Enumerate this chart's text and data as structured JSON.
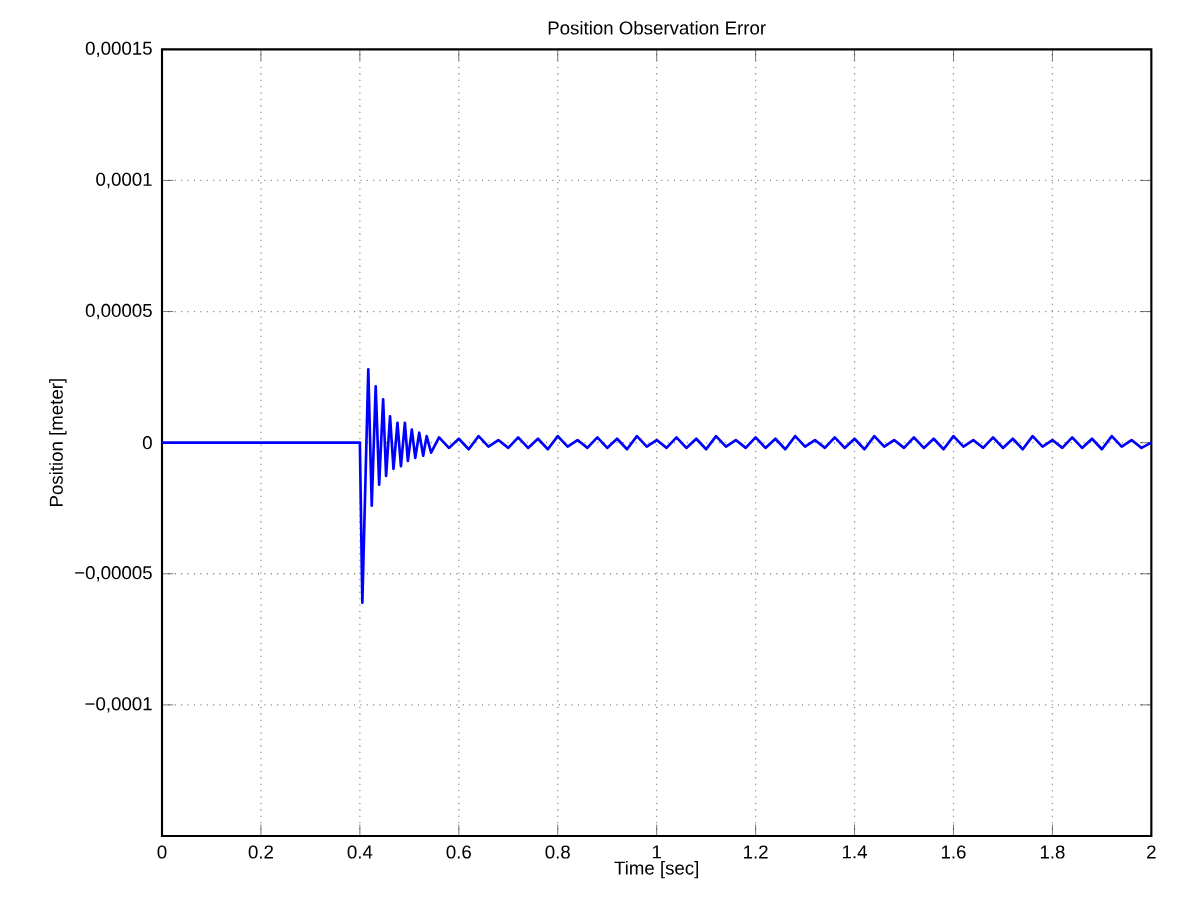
{
  "chart_data": {
    "type": "line",
    "title": "Position Observation Error",
    "xlabel": "Time [sec]",
    "ylabel": "Position [meter]",
    "xlim": [
      0,
      2
    ],
    "ylim": [
      -0.00015,
      0.00015
    ],
    "xticks": [
      0,
      0.2,
      0.4,
      0.6,
      0.8,
      1,
      1.2,
      1.4,
      1.6,
      1.8,
      2
    ],
    "yticks": [
      {
        "value": -0.0001,
        "label": "−0,0001"
      },
      {
        "value": -5e-05,
        "label": "−0,00005"
      },
      {
        "value": 0,
        "label": "0"
      },
      {
        "value": 5e-05,
        "label": "0,00005"
      },
      {
        "value": 0.0001,
        "label": "0,0001"
      },
      {
        "value": 0.00015,
        "label": "0,00015"
      }
    ],
    "grid": true,
    "marker": "none",
    "line_style": "solid",
    "series": [
      {
        "color": "#0000ff",
        "x": [
          0,
          0.4,
          0.405,
          0.417,
          0.424,
          0.432,
          0.439,
          0.447,
          0.453,
          0.461,
          0.468,
          0.476,
          0.483,
          0.491,
          0.497,
          0.505,
          0.512,
          0.52,
          0.528,
          0.535,
          0.544,
          0.56,
          0.58,
          0.6,
          0.62,
          0.64,
          0.66,
          0.68,
          0.7,
          0.72,
          0.74,
          0.76,
          0.78,
          0.8,
          0.82,
          0.84,
          0.86,
          0.88,
          0.9,
          0.92,
          0.94,
          0.96,
          0.98,
          1,
          1.02,
          1.04,
          1.06,
          1.08,
          1.1,
          1.12,
          1.14,
          1.16,
          1.18,
          1.2,
          1.22,
          1.24,
          1.26,
          1.28,
          1.3,
          1.32,
          1.34,
          1.36,
          1.38,
          1.4,
          1.42,
          1.44,
          1.46,
          1.48,
          1.5,
          1.52,
          1.54,
          1.56,
          1.58,
          1.6,
          1.62,
          1.64,
          1.66,
          1.68,
          1.7,
          1.72,
          1.74,
          1.76,
          1.78,
          1.8,
          1.82,
          1.84,
          1.86,
          1.88,
          1.9,
          1.92,
          1.94,
          1.96,
          1.98,
          2
        ],
        "values": [
          0,
          0,
          -6.1e-05,
          2.8e-05,
          -2.4e-05,
          2.15e-05,
          -1.6e-05,
          1.65e-05,
          -1.27e-05,
          1e-05,
          -1e-05,
          7.6e-06,
          -9e-06,
          7.6e-06,
          -7e-06,
          5e-06,
          -5.8e-06,
          3.8e-06,
          -5e-06,
          2.5e-06,
          -3.8e-06,
          2e-06,
          -2e-06,
          1.5e-06,
          -2.5e-06,
          2.5e-06,
          -1.5e-06,
          1e-06,
          -2e-06,
          2e-06,
          -2e-06,
          1.5e-06,
          -2.5e-06,
          2.5e-06,
          -1.5e-06,
          1e-06,
          -2e-06,
          2e-06,
          -2e-06,
          1.5e-06,
          -2.5e-06,
          2.5e-06,
          -1.5e-06,
          1e-06,
          -2e-06,
          2e-06,
          -2e-06,
          1.5e-06,
          -2.5e-06,
          2.5e-06,
          -1.5e-06,
          1e-06,
          -2e-06,
          2e-06,
          -2e-06,
          1.5e-06,
          -2.5e-06,
          2.5e-06,
          -1.5e-06,
          1e-06,
          -2e-06,
          2e-06,
          -2e-06,
          1.5e-06,
          -2.5e-06,
          2.5e-06,
          -1.5e-06,
          1e-06,
          -2e-06,
          2e-06,
          -2e-06,
          1.5e-06,
          -2.5e-06,
          2.5e-06,
          -1.5e-06,
          1e-06,
          -2e-06,
          2e-06,
          -2e-06,
          1.5e-06,
          -2.5e-06,
          2.5e-06,
          -1.5e-06,
          1e-06,
          -2e-06,
          2e-06,
          -2e-06,
          1.5e-06,
          -2.5e-06,
          2.5e-06,
          -1.5e-06,
          1e-06,
          -2e-06,
          0
        ]
      }
    ]
  }
}
